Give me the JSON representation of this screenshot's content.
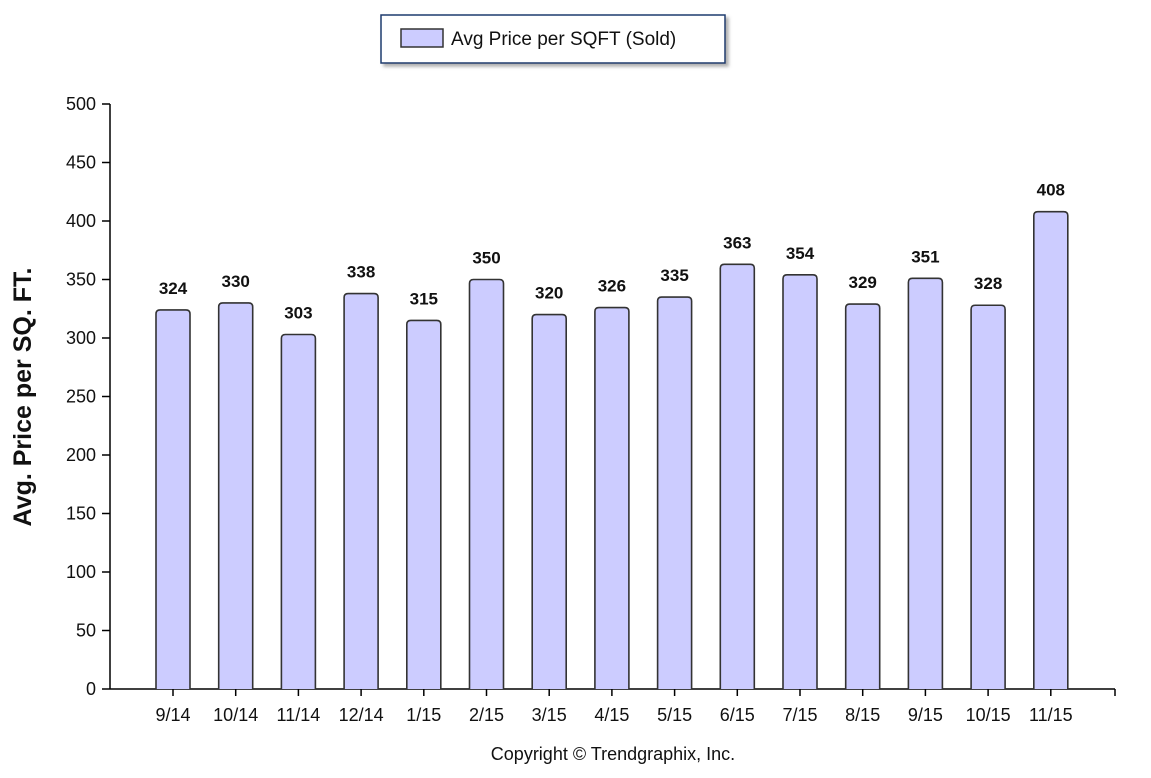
{
  "legend": {
    "label": "Avg Price per SQFT (Sold)"
  },
  "footer": {
    "copyright": "Copyright © Trendgraphix, Inc."
  },
  "colors": {
    "bar_fill": "#ccccff",
    "bar_stroke": "#333333",
    "axis": "#000000"
  },
  "chart_data": {
    "type": "bar",
    "title": "",
    "xlabel": "",
    "ylabel": "Avg. Price per SQ. FT.",
    "ylim": [
      0,
      500
    ],
    "yticks": [
      0,
      50,
      100,
      150,
      200,
      250,
      300,
      350,
      400,
      450,
      500
    ],
    "grid": false,
    "legend_position": "top-center",
    "categories": [
      "9/14",
      "10/14",
      "11/14",
      "12/14",
      "1/15",
      "2/15",
      "3/15",
      "4/15",
      "5/15",
      "6/15",
      "7/15",
      "8/15",
      "9/15",
      "10/15",
      "11/15"
    ],
    "series": [
      {
        "name": "Avg Price per SQFT (Sold)",
        "values": [
          324,
          330,
          303,
          338,
          315,
          350,
          320,
          326,
          335,
          363,
          354,
          329,
          351,
          328,
          408
        ]
      }
    ]
  }
}
